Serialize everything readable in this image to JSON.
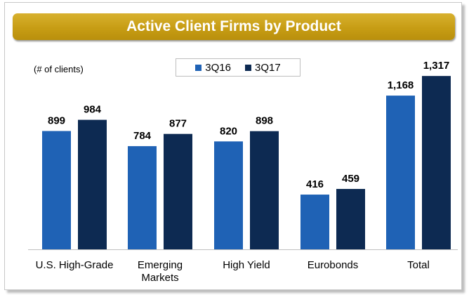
{
  "chart_data": {
    "type": "bar",
    "title": "Active Client Firms by Product",
    "ylabel": "(# of clients)",
    "xlabel": "",
    "categories": [
      [
        "U.S. High-Grade"
      ],
      [
        "Emerging",
        "Markets"
      ],
      [
        "High Yield"
      ],
      [
        "Eurobonds"
      ],
      [
        "Total"
      ]
    ],
    "series": [
      {
        "name": "3Q16",
        "color": "#1f62b5",
        "values": [
          899,
          784,
          820,
          416,
          1168
        ],
        "labels": [
          "899",
          "784",
          "820",
          "416",
          "1,168"
        ]
      },
      {
        "name": "3Q17",
        "color": "#0d2a52",
        "values": [
          984,
          877,
          898,
          459,
          1317
        ],
        "labels": [
          "984",
          "877",
          "898",
          "459",
          "1,317"
        ]
      }
    ],
    "ylim": [
      0,
      1500
    ],
    "grid": false,
    "legend_position": "top-center"
  }
}
